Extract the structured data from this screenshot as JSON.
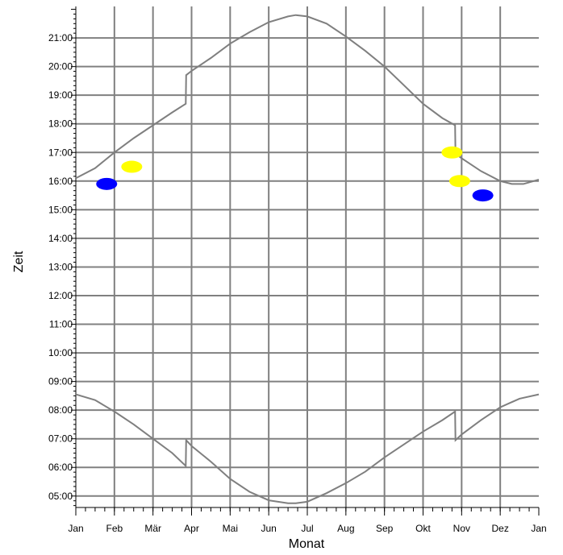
{
  "chart_data": {
    "type": "line",
    "xlabel": "Monat",
    "ylabel": "Zeit",
    "x_tick_labels": [
      "Jan",
      "Feb",
      "Mär",
      "Apr",
      "Mai",
      "Jun",
      "Jul",
      "Aug",
      "Sep",
      "Okt",
      "Nov",
      "Dez",
      "Jan"
    ],
    "y_tick_labels": [
      "05:00",
      "06:00",
      "07:00",
      "08:00",
      "09:00",
      "10:00",
      "11:00",
      "12:00",
      "13:00",
      "14:00",
      "15:00",
      "16:00",
      "17:00",
      "18:00",
      "19:00",
      "20:00",
      "21:00"
    ],
    "xlim": [
      0,
      12
    ],
    "ylim": [
      4.6,
      22.1
    ],
    "grid": true,
    "series": [
      {
        "color": "#7f7f7f",
        "x": [
          0,
          0.5,
          1,
          1.5,
          2,
          2.5,
          2.85,
          2.86,
          3,
          3.5,
          4,
          4.5,
          5,
          5.5,
          5.7,
          6,
          6.5,
          7,
          7.5,
          8,
          8.5,
          9,
          9.5,
          9.83,
          9.84,
          10,
          10.5,
          11,
          11.3,
          11.6,
          12
        ],
        "y": [
          16.1,
          16.45,
          17.0,
          17.5,
          17.95,
          18.4,
          18.7,
          19.7,
          19.85,
          20.3,
          20.8,
          21.2,
          21.55,
          21.75,
          21.8,
          21.75,
          21.5,
          21.05,
          20.55,
          20.0,
          19.35,
          18.7,
          18.2,
          17.95,
          16.95,
          16.8,
          16.35,
          16.0,
          15.9,
          15.9,
          16.05
        ]
      },
      {
        "color": "#7f7f7f",
        "x": [
          0,
          0.5,
          1,
          1.5,
          2,
          2.5,
          2.85,
          2.86,
          3,
          3.5,
          4,
          4.5,
          5,
          5.5,
          5.7,
          6,
          6.5,
          7,
          7.5,
          8,
          8.5,
          9,
          9.5,
          9.83,
          9.84,
          10,
          10.5,
          11,
          11.5,
          12
        ],
        "y": [
          8.55,
          8.35,
          7.95,
          7.5,
          7.0,
          6.5,
          6.05,
          6.95,
          6.75,
          6.2,
          5.6,
          5.15,
          4.85,
          4.75,
          4.75,
          4.8,
          5.1,
          5.45,
          5.85,
          6.35,
          6.8,
          7.25,
          7.65,
          7.95,
          6.95,
          7.15,
          7.65,
          8.1,
          8.4,
          8.55
        ]
      }
    ],
    "markers": [
      {
        "color": "#0000ff",
        "x": 0.8,
        "y": 15.9
      },
      {
        "color": "#ffff00",
        "x": 1.45,
        "y": 16.5
      },
      {
        "color": "#ffff00",
        "x": 9.75,
        "y": 17.0
      },
      {
        "color": "#ffff00",
        "x": 9.95,
        "y": 16.0
      },
      {
        "color": "#0000ff",
        "x": 10.55,
        "y": 15.5
      }
    ]
  }
}
